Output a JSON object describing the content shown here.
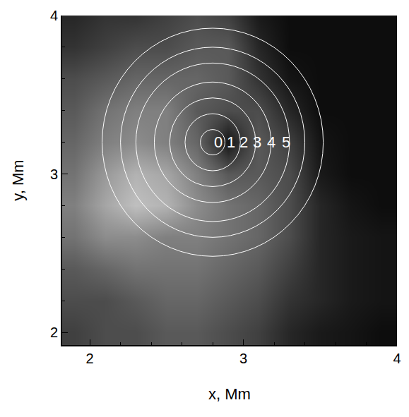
{
  "chart_data": {
    "type": "heatmap",
    "x_label": "x, Mm",
    "y_label": "y, Mm",
    "x": [
      1.9,
      2.1,
      2.3,
      2.5,
      2.7,
      2.9,
      3.1,
      3.3,
      3.5,
      3.7,
      3.9
    ],
    "y": [
      2.0,
      2.2,
      2.4,
      2.6,
      2.8,
      3.0,
      3.2,
      3.4,
      3.6,
      3.8,
      4.0
    ],
    "cells": [
      [
        0.25,
        0.3,
        0.3,
        0.35,
        0.35,
        0.3,
        0.25,
        0.15,
        0.1,
        0.08,
        0.05
      ],
      [
        0.3,
        0.3,
        0.35,
        0.4,
        0.4,
        0.35,
        0.3,
        0.2,
        0.15,
        0.1,
        0.08
      ],
      [
        0.35,
        0.4,
        0.45,
        0.45,
        0.45,
        0.4,
        0.35,
        0.25,
        0.15,
        0.1,
        0.08
      ],
      [
        0.45,
        0.55,
        0.55,
        0.5,
        0.5,
        0.45,
        0.4,
        0.3,
        0.15,
        0.1,
        0.08
      ],
      [
        0.5,
        0.65,
        0.75,
        0.7,
        0.55,
        0.45,
        0.4,
        0.3,
        0.15,
        0.08,
        0.05
      ],
      [
        0.45,
        0.6,
        0.7,
        0.65,
        0.5,
        0.35,
        0.35,
        0.3,
        0.1,
        0.05,
        0.05
      ],
      [
        0.4,
        0.5,
        0.55,
        0.5,
        0.4,
        0.08,
        0.35,
        0.25,
        0.08,
        0.05,
        0.05
      ],
      [
        0.35,
        0.45,
        0.5,
        0.5,
        0.35,
        0.3,
        0.3,
        0.15,
        0.05,
        0.05,
        0.05
      ],
      [
        0.3,
        0.35,
        0.4,
        0.4,
        0.4,
        0.35,
        0.2,
        0.08,
        0.05,
        0.05,
        0.05
      ],
      [
        0.2,
        0.25,
        0.3,
        0.3,
        0.35,
        0.35,
        0.15,
        0.05,
        0.05,
        0.05,
        0.05
      ],
      [
        0.15,
        0.2,
        0.2,
        0.25,
        0.3,
        0.25,
        0.1,
        0.05,
        0.05,
        0.05,
        0.05
      ]
    ],
    "zlim": [
      0,
      1
    ],
    "color": "gray",
    "xlim": [
      1.82,
      4
    ],
    "ylim": [
      1.92,
      4
    ],
    "xticks": [
      2,
      3,
      4
    ],
    "yticks": [
      2,
      3,
      4
    ],
    "grid": false,
    "circles": {
      "center": [
        2.8,
        3.2
      ],
      "radii": [
        0.08,
        0.18,
        0.28,
        0.38,
        0.5,
        0.6,
        0.72
      ],
      "color": "#ffffff"
    },
    "ring_labels": [
      {
        "text": "0",
        "x": 2.835,
        "y": 3.2
      },
      {
        "text": "1",
        "x": 2.92,
        "y": 3.2
      },
      {
        "text": "2",
        "x": 3.0,
        "y": 3.2
      },
      {
        "text": "3",
        "x": 3.09,
        "y": 3.2
      },
      {
        "text": "4",
        "x": 3.18,
        "y": 3.2
      },
      {
        "text": "5",
        "x": 3.28,
        "y": 3.2
      }
    ]
  }
}
